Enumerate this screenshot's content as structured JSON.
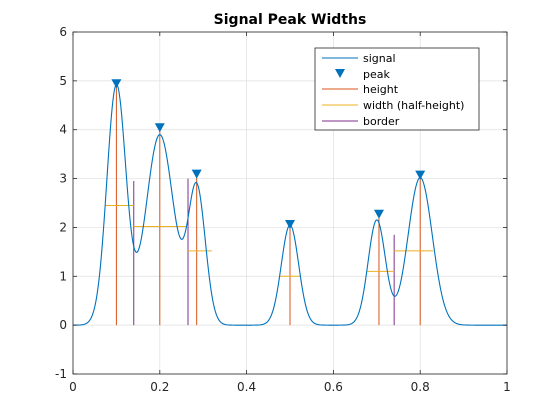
{
  "chart_data": {
    "type": "line",
    "title": "Signal Peak Widths",
    "xlabel": "",
    "ylabel": "",
    "xlim": [
      0,
      1
    ],
    "ylim": [
      -1,
      6
    ],
    "xticks": [
      0,
      0.2,
      0.4,
      0.6,
      0.8,
      1
    ],
    "xtick_labels": [
      "0",
      "0.2",
      "0.4",
      "0.6",
      "0.8",
      "1"
    ],
    "yticks": [
      -1,
      0,
      1,
      2,
      3,
      4,
      5,
      6
    ],
    "ytick_labels": [
      "-1",
      "0",
      "1",
      "2",
      "3",
      "4",
      "5",
      "6"
    ],
    "grid": true,
    "legend_position": "top-right",
    "legend": [
      "signal",
      "peak",
      "height",
      "width (half-height)",
      "border"
    ],
    "colors": {
      "signal": "#0072BD",
      "peak": "#0072BD",
      "height": "#D95319",
      "width": "#EDB120",
      "border": "#7E2F8E",
      "grid": "#dfdfdf",
      "axis": "#262626"
    },
    "gaussians": [
      {
        "center": 0.1,
        "amplitude": 4.9,
        "sigma": 0.022
      },
      {
        "center": 0.2,
        "amplitude": 3.9,
        "sigma": 0.032
      },
      {
        "center": 0.285,
        "amplitude": 2.8,
        "sigma": 0.02
      },
      {
        "center": 0.5,
        "amplitude": 2.05,
        "sigma": 0.02
      },
      {
        "center": 0.7,
        "amplitude": 2.15,
        "sigma": 0.02
      },
      {
        "center": 0.8,
        "amplitude": 3.02,
        "sigma": 0.028
      }
    ],
    "peaks": [
      {
        "x": 0.1,
        "y": 4.95
      },
      {
        "x": 0.2,
        "y": 4.05
      },
      {
        "x": 0.285,
        "y": 3.1
      },
      {
        "x": 0.5,
        "y": 2.07
      },
      {
        "x": 0.705,
        "y": 2.28
      },
      {
        "x": 0.8,
        "y": 3.08
      }
    ],
    "heights": [
      {
        "x": 0.1,
        "y": 4.95
      },
      {
        "x": 0.2,
        "y": 4.05
      },
      {
        "x": 0.285,
        "y": 3.1
      },
      {
        "x": 0.5,
        "y": 2.07
      },
      {
        "x": 0.705,
        "y": 2.28
      },
      {
        "x": 0.8,
        "y": 3.08
      }
    ],
    "widths": [
      {
        "y": 2.45,
        "x1": 0.075,
        "x2": 0.14
      },
      {
        "y": 2.02,
        "x1": 0.14,
        "x2": 0.265
      },
      {
        "y": 1.52,
        "x1": 0.265,
        "x2": 0.32
      },
      {
        "y": 1.0,
        "x1": 0.476,
        "x2": 0.524
      },
      {
        "y": 1.1,
        "x1": 0.677,
        "x2": 0.74
      },
      {
        "y": 1.52,
        "x1": 0.74,
        "x2": 0.83
      }
    ],
    "borders": [
      {
        "x": 0.14,
        "y": 2.95
      },
      {
        "x": 0.265,
        "y": 3.0
      },
      {
        "x": 0.74,
        "y": 1.85
      }
    ]
  }
}
